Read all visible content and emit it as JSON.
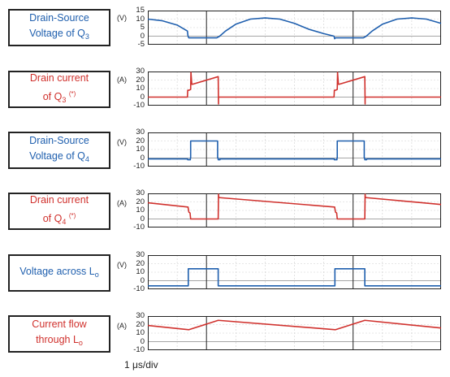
{
  "chart_data": {
    "type": "line",
    "x_units_per_div": "1 µs/div",
    "x_range_us": [
      0,
      10
    ],
    "panels": [
      {
        "label": [
          "Drain-Source",
          "Voltage of Q",
          "3",
          ""
        ],
        "unit": "(V)",
        "color": "#1f5fae",
        "ylim": [
          -5,
          15
        ],
        "ticks": [
          "15",
          "10",
          "5",
          "0",
          "-5"
        ],
        "tickvals": [
          15,
          10,
          5,
          0,
          -5
        ],
        "x": [
          0,
          0.5,
          1.0,
          1.35,
          1.37,
          1.4,
          1.45,
          2.35,
          2.45,
          2.65,
          3.0,
          3.5,
          4.0,
          4.5,
          5.0,
          5.5,
          6.0,
          6.35,
          6.37,
          6.4,
          6.45,
          7.35,
          7.45,
          7.65,
          8.0,
          8.5,
          9.0,
          9.5,
          10.0
        ],
        "y": [
          10,
          9,
          6.5,
          3,
          0,
          -1,
          -1,
          -1,
          0,
          3,
          7,
          10,
          10.7,
          10,
          7.5,
          4,
          1.5,
          0,
          -1.5,
          -1,
          -1,
          -1,
          0,
          3,
          7,
          10,
          10.7,
          10,
          7.5
        ]
      },
      {
        "label": [
          "Drain current",
          "of Q",
          "3",
          "(*)"
        ],
        "unit": "(A)",
        "color": "#d0312d",
        "ylim": [
          -10,
          30
        ],
        "ticks": [
          "30",
          "20",
          "10",
          "0",
          "-10"
        ],
        "tickvals": [
          30,
          20,
          10,
          0,
          -10
        ],
        "x": [
          0,
          1.35,
          1.36,
          1.4,
          1.46,
          1.47,
          1.5,
          1.52,
          2.4,
          2.41,
          2.41,
          2.42,
          6.35,
          6.36,
          6.4,
          6.46,
          6.47,
          6.5,
          6.52,
          7.4,
          7.41,
          7.41,
          7.42,
          10.0
        ],
        "y": [
          0,
          0,
          8,
          8,
          9,
          29,
          15,
          15,
          24,
          -8,
          0,
          0,
          0,
          8,
          8,
          9,
          29,
          15,
          15,
          24,
          -8,
          0,
          0,
          0
        ]
      },
      {
        "label": [
          "Drain-Source",
          "Voltage of Q",
          "4",
          ""
        ],
        "unit": "(V)",
        "color": "#1f5fae",
        "ylim": [
          -10,
          30
        ],
        "ticks": [
          "30",
          "20",
          "10",
          "0",
          "-10"
        ],
        "tickvals": [
          30,
          20,
          10,
          0,
          -10
        ],
        "x": [
          0,
          1.36,
          1.36,
          1.45,
          1.45,
          1.46,
          1.46,
          2.38,
          2.38,
          2.4,
          2.4,
          2.46,
          2.46,
          6.36,
          6.36,
          6.45,
          6.45,
          6.46,
          6.46,
          7.38,
          7.38,
          7.4,
          7.4,
          7.46,
          7.46,
          10.0
        ],
        "y": [
          -1,
          -1,
          -2,
          -2,
          0,
          0,
          20,
          20,
          0,
          0,
          -2,
          -2,
          -1,
          -1,
          -2,
          -2,
          0,
          0,
          20,
          20,
          0,
          0,
          -2,
          -2,
          -1,
          -1
        ]
      },
      {
        "label": [
          "Drain current",
          "of Q",
          "4",
          "(*)"
        ],
        "unit": "(A)",
        "color": "#d0312d",
        "ylim": [
          -10,
          30
        ],
        "ticks": [
          "30",
          "20",
          "10",
          "0",
          "-10"
        ],
        "tickvals": [
          30,
          20,
          10,
          0,
          -10
        ],
        "x": [
          0,
          1.36,
          1.37,
          1.4,
          1.44,
          1.46,
          1.47,
          2.4,
          2.41,
          2.42,
          2.43,
          2.45,
          6.36,
          6.37,
          6.4,
          6.44,
          6.46,
          6.47,
          7.4,
          7.41,
          7.42,
          7.43,
          7.45,
          10.0
        ],
        "y": [
          19,
          14,
          14,
          8,
          7,
          0,
          0,
          0,
          29,
          25,
          25,
          25,
          14,
          14,
          8,
          7,
          0,
          0,
          0,
          29,
          25,
          25,
          25,
          17
        ]
      },
      {
        "label": [
          "Voltage across L",
          "",
          "o",
          ""
        ],
        "unit": "(V)",
        "color": "#1f5fae",
        "ylim": [
          -10,
          30
        ],
        "ticks": [
          "30",
          "20",
          "10",
          "0",
          "-10"
        ],
        "tickvals": [
          30,
          20,
          10,
          0,
          -10
        ],
        "x": [
          0,
          1.38,
          1.38,
          2.4,
          2.4,
          6.38,
          6.38,
          7.4,
          7.4,
          10.0
        ],
        "y": [
          -6,
          -6,
          14,
          14,
          -6,
          -6,
          14,
          14,
          -6,
          -6
        ]
      },
      {
        "label": [
          "Current flow",
          "through L",
          "o",
          ""
        ],
        "unit": "(A)",
        "color": "#d0312d",
        "ylim": [
          -10,
          30
        ],
        "ticks": [
          "30",
          "20",
          "10",
          "0",
          "-10"
        ],
        "tickvals": [
          30,
          20,
          10,
          0,
          -10
        ],
        "x": [
          0,
          1.4,
          2.4,
          6.4,
          7.4,
          10.0
        ],
        "y": [
          19,
          14,
          25,
          14,
          25,
          16
        ]
      }
    ]
  },
  "footer": "1 μs/div"
}
